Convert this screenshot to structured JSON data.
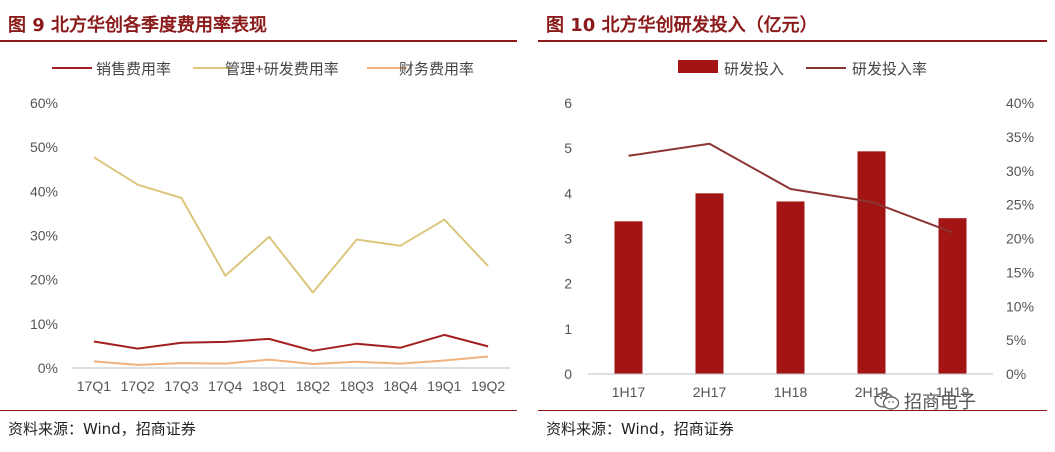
{
  "left": {
    "title": "图 9  北方华创各季度费用率表现",
    "source": "资料来源：Wind，招商证券"
  },
  "right": {
    "title": "图 10  北方华创研发投入（亿元）",
    "source": "资料来源：Wind，招商证券"
  },
  "watermark": {
    "text": "招商电子",
    "icon": "wechat-icon"
  },
  "chart_data": [
    {
      "type": "line",
      "title": "图 9  北方华创各季度费用率表现",
      "categories": [
        "17Q1",
        "17Q2",
        "17Q3",
        "17Q4",
        "18Q1",
        "18Q2",
        "18Q3",
        "18Q4",
        "19Q1",
        "19Q2"
      ],
      "ylim": [
        0,
        0.6
      ],
      "yticks": [
        0,
        0.1,
        0.2,
        0.3,
        0.4,
        0.5,
        0.6
      ],
      "ytick_labels": [
        "0%",
        "10%",
        "20%",
        "30%",
        "40%",
        "50%",
        "60%"
      ],
      "legend": "top",
      "grid": false,
      "series": [
        {
          "name": "销售费用率",
          "color": "#a31f1f",
          "values": [
            0.06,
            0.044,
            0.057,
            0.059,
            0.066,
            0.039,
            0.055,
            0.046,
            0.075,
            0.049
          ]
        },
        {
          "name": "管理+研发费用率",
          "color": "#dcc57c",
          "values": [
            0.477,
            0.415,
            0.385,
            0.209,
            0.297,
            0.171,
            0.291,
            0.277,
            0.336,
            0.231
          ]
        },
        {
          "name": "财务费用率",
          "color": "#f2b27c",
          "values": [
            0.015,
            0.007,
            0.011,
            0.01,
            0.019,
            0.009,
            0.014,
            0.01,
            0.017,
            0.026
          ]
        }
      ]
    },
    {
      "type": "bar",
      "title": "图 10  北方华创研发投入（亿元）",
      "categories": [
        "1H17",
        "2H17",
        "1H18",
        "2H18",
        "1H19"
      ],
      "legend": "top",
      "grid": false,
      "ylim": [
        0,
        6
      ],
      "yticks": [
        0,
        1,
        2,
        3,
        4,
        5,
        6
      ],
      "ytick_labels": [
        "0",
        "1",
        "2",
        "3",
        "4",
        "5",
        "6"
      ],
      "y2lim": [
        0,
        0.4
      ],
      "y2ticks": [
        0,
        0.05,
        0.1,
        0.15,
        0.2,
        0.25,
        0.3,
        0.35,
        0.4
      ],
      "y2tick_labels": [
        "0%",
        "5%",
        "10%",
        "15%",
        "20%",
        "25%",
        "30%",
        "35%",
        "40%"
      ],
      "series": [
        {
          "name": "研发投入",
          "type": "bar",
          "axis": "left",
          "color": "#a31515",
          "values": [
            3.38,
            4.0,
            3.82,
            4.93,
            3.45
          ]
        },
        {
          "name": "研发投入率",
          "type": "line",
          "axis": "right",
          "color": "#8b3535",
          "values": [
            0.322,
            0.34,
            0.273,
            0.254,
            0.209
          ]
        }
      ]
    }
  ]
}
